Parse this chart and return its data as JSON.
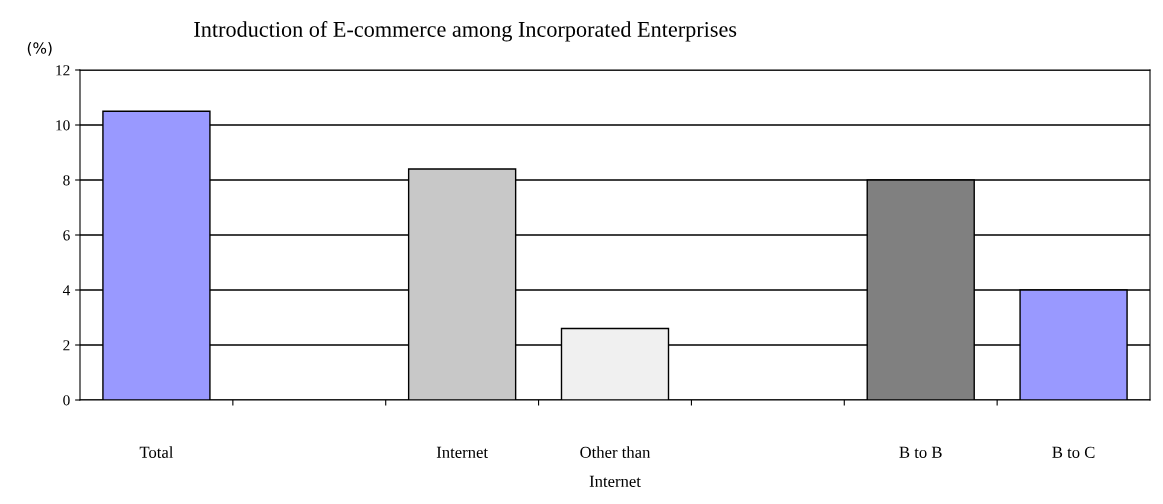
{
  "chart_data": {
    "type": "bar",
    "title": "Introduction of E-commerce among Incorporated Enterprises",
    "ylabel": "(%)",
    "categories": [
      "Total",
      null,
      "Internet",
      "Other than\nInternet",
      null,
      "B to B",
      "B to C"
    ],
    "values": [
      10.5,
      null,
      8.4,
      2.6,
      null,
      8.0,
      4.0
    ],
    "colors": [
      "#9999ff",
      null,
      "#c8c8c8",
      "#f0f0f0",
      null,
      "#808080",
      "#9999ff"
    ],
    "ylim": [
      0,
      12
    ],
    "yticks": [
      0,
      2,
      4,
      6,
      8,
      10,
      12
    ],
    "grid": "y"
  }
}
